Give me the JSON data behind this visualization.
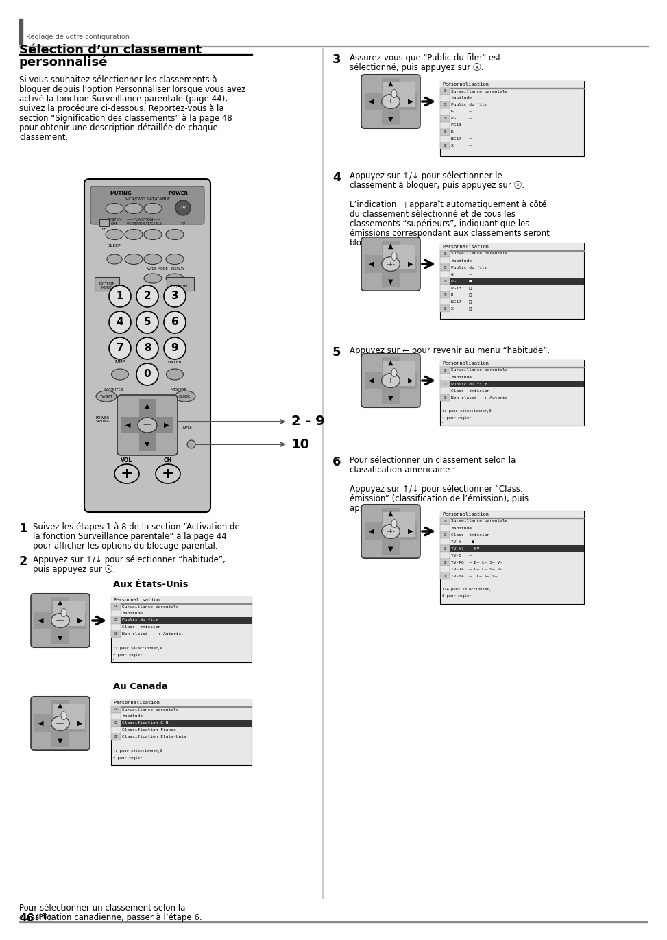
{
  "page_bg": "#ffffff",
  "header_text": "Réglage de votre configuration",
  "title_line1": "Sélection d’un classement",
  "title_line2": "personnalisé",
  "body_lines": [
    "Si vous souhaitez sélectionner les classements à",
    "bloquer depuis l’option Personnaliser lorsque vous avez",
    "activé la fonction Surveillance parentale (page 44),",
    "suivez la procédure ci-dessous. Reportez-vous à la",
    "section “Signification des classements” à la page 48",
    "pour obtenir une description détaillée de chaque",
    "classement."
  ],
  "step1_lines": [
    "Suivez les étapes 1 à 8 de la section “Activation de",
    "la fonction Surveillance parentale” à la page 44",
    "pour afficher les options du blocage parental."
  ],
  "step2_lines": [
    "Appuyez sur ↑/↓ pour sélectionner “habitude”,",
    "puis appuyez sur ⓧ."
  ],
  "step3_lines": [
    "Assurez-vous que “Public du film” est",
    "sélectionné, puis appuyez sur ⓧ."
  ],
  "step4_lines": [
    "Appuyez sur ↑/↓ pour sélectionner le",
    "classement à bloquer, puis appuyez sur ⓧ.",
    "",
    "L’indication □ apparaît automatiquement à côté",
    "du classement sélectionné et de tous les",
    "classements “supérieurs”, indiquant que les",
    "émissions correspondant aux classements seront",
    "bloquées."
  ],
  "step5_line": "Appuyez sur ← pour revenir au menu “habitude”.",
  "step6_lines": [
    "Pour sélectionner un classement selon la",
    "classification américaine :",
    "",
    "Appuyez sur ↑/↓ pour sélectionner “Class.",
    "émission” (classification de l’émission), puis",
    "appuyez sur ⓧ."
  ],
  "aux_etats_unis": "Aux États-Unis",
  "au_canada": "Au Canada",
  "footer_line1": "Pour sélectionner un classement selon la",
  "footer_line2": "classification canadienne, passer à l’étape 6.",
  "page_number": "46",
  "page_lang": "(FR)",
  "arrow_label_29": "2 - 9",
  "arrow_label_10": "10"
}
